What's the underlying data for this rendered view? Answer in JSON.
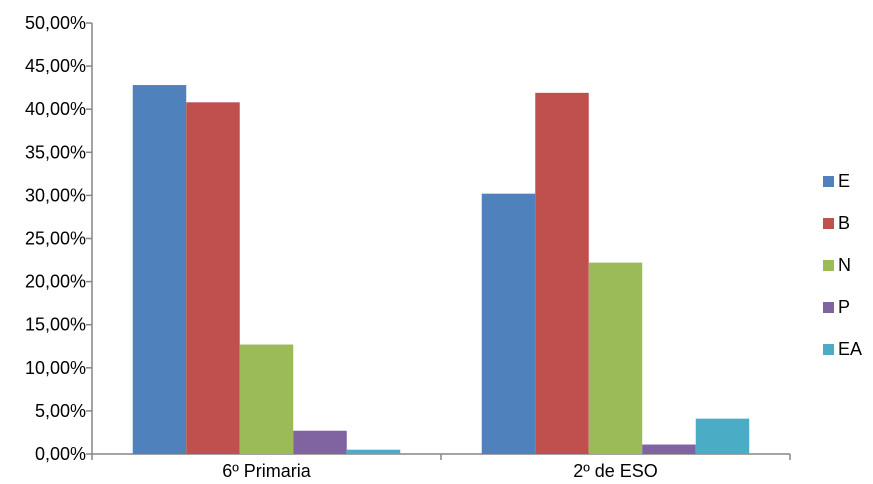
{
  "chart_data": {
    "type": "bar",
    "title": "",
    "xlabel": "",
    "ylabel": "",
    "categories": [
      "6º Primaria",
      "2º de ESO"
    ],
    "series": [
      {
        "name": "E",
        "values": [
          42.8,
          30.2
        ],
        "color": "#4F81BD"
      },
      {
        "name": "B",
        "values": [
          40.8,
          41.9
        ],
        "color": "#C0504D"
      },
      {
        "name": "N",
        "values": [
          12.7,
          22.2
        ],
        "color": "#9BBB59"
      },
      {
        "name": "P",
        "values": [
          2.7,
          1.1
        ],
        "color": "#8064A2"
      },
      {
        "name": "EA",
        "values": [
          0.5,
          4.1
        ],
        "color": "#4BACC6"
      }
    ],
    "ylim": [
      0,
      50
    ],
    "yticks": [
      "0,00%",
      "5,00%",
      "10,00%",
      "15,00%",
      "20,00%",
      "25,00%",
      "30,00%",
      "35,00%",
      "40,00%",
      "45,00%",
      "50,00%"
    ],
    "grid": false,
    "legend": "right"
  }
}
